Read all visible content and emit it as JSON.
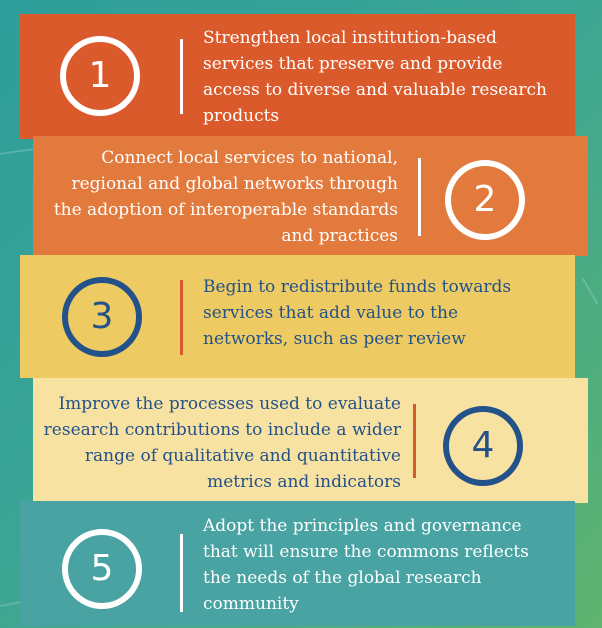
{
  "steps": [
    {
      "number": "1",
      "text": "Strengthen local institution-based services that preserve and provide access to diverse and valuable research products"
    },
    {
      "number": "2",
      "text": "Connect local services to national, regional and global networks through the adoption of interoperable standards and practices"
    },
    {
      "number": "3",
      "text": "Begin to redistribute funds towards services that add value to the networks, such as peer review"
    },
    {
      "number": "4",
      "text": "Improve the processes used to evaluate research contributions to include a wider range of qualitative and quantitative metrics and indicators"
    },
    {
      "number": "5",
      "text": "Adopt the principles and governance that will ensure the commons reflects the needs of the global research community"
    }
  ],
  "colors": {
    "step1": "#db5a2c",
    "step2": "#e27a3e",
    "step3": "#edcb62",
    "step4": "#f8e2a2",
    "step5": "#49a3a3",
    "dark_blue": "#23518a",
    "accent_orange": "#d8592a"
  }
}
